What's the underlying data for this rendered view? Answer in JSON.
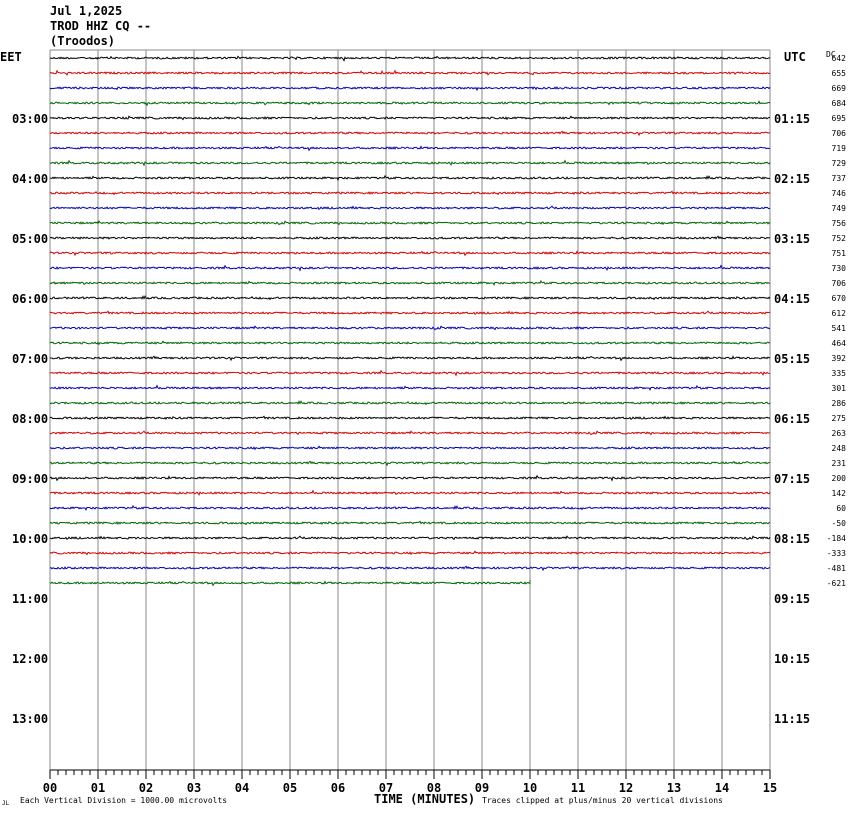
{
  "header": {
    "date": "Jul 1,2025",
    "station": "TROD HHZ CQ --",
    "location": "(Troodos)"
  },
  "left_zone_label": "EET",
  "right_zone_label": "UTC",
  "dc_label": "DC",
  "footer": {
    "corner_mark": "JL",
    "vertical_division": "Each Vertical Division = 1000.00 microvolts",
    "clip_note": "Traces clipped at plus/minus 20 vertical divisions"
  },
  "colors": {
    "trace_cycle": [
      "#000000",
      "#d40000",
      "#0000b0",
      "#006400"
    ],
    "grid": "#888888"
  },
  "chart_data": {
    "type": "line",
    "xlabel": "TIME (MINUTES)",
    "x_ticks": [
      "00",
      "01",
      "02",
      "03",
      "04",
      "05",
      "06",
      "07",
      "08",
      "09",
      "10",
      "11",
      "12",
      "13",
      "14",
      "15"
    ],
    "xlim": [
      0,
      15
    ],
    "left_hour_labels": [
      "03:00",
      "04:00",
      "05:00",
      "06:00",
      "07:00",
      "08:00",
      "09:00",
      "10:00",
      "11:00",
      "12:00",
      "13:00"
    ],
    "right_hour_labels": [
      "01:15",
      "02:15",
      "03:15",
      "04:15",
      "05:15",
      "06:15",
      "07:15",
      "08:15",
      "09:15",
      "10:15",
      "11:15"
    ],
    "rows_per_hour": 4,
    "dc_offsets": [
      "642",
      "655",
      "669",
      "684",
      "695",
      "706",
      "719",
      "729",
      "737",
      "746",
      "749",
      "756",
      "752",
      "751",
      "730",
      "706",
      "670",
      "612",
      "541",
      "464",
      "392",
      "335",
      "301",
      "286",
      "275",
      "263",
      "248",
      "231",
      "200",
      "142",
      "60",
      "-50",
      "-184",
      "-333",
      "-481",
      "-621"
    ],
    "last_row_end_minute": 10
  }
}
